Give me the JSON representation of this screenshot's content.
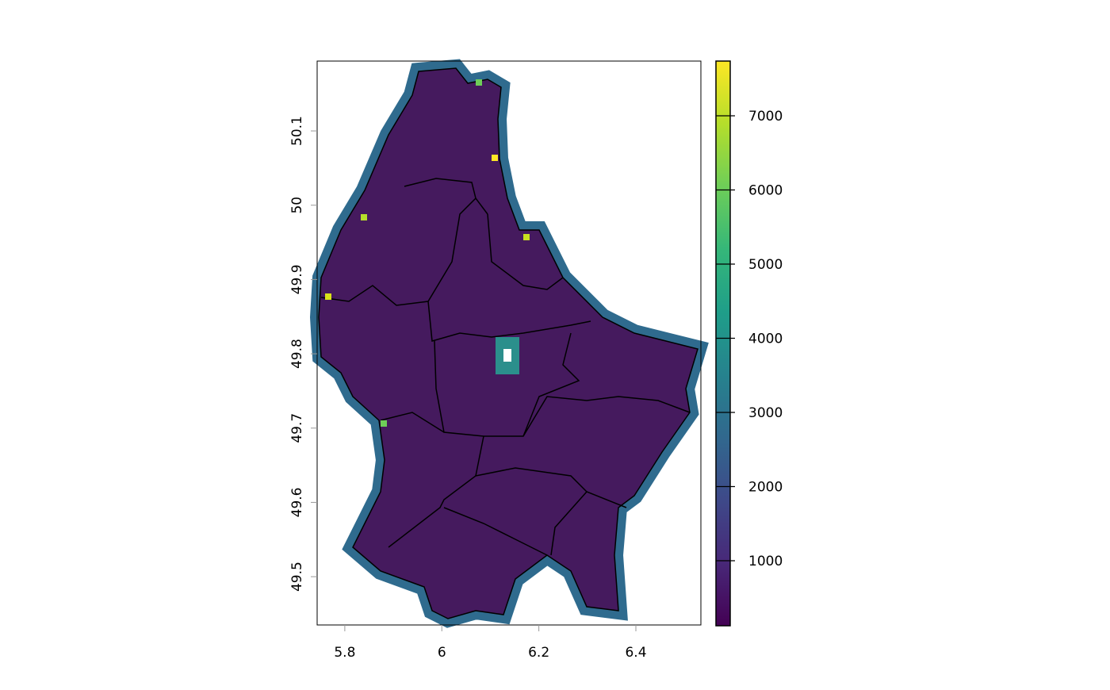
{
  "chart_data": {
    "type": "heatmap",
    "x_ticks": [
      "5.8",
      "6",
      "6.2",
      "6.4"
    ],
    "x_tick_values": [
      5.8,
      6.0,
      6.2,
      6.4
    ],
    "y_ticks": [
      "49.5",
      "49.6",
      "49.7",
      "49.8",
      "49.9",
      "50",
      "50.1"
    ],
    "y_tick_values": [
      49.5,
      49.6,
      49.7,
      49.8,
      49.9,
      50.0,
      50.1
    ],
    "xlim": [
      5.743,
      6.534
    ],
    "ylim": [
      49.435,
      50.194
    ],
    "legend": {
      "position": "right",
      "ticks": [
        "1000",
        "2000",
        "3000",
        "4000",
        "5000",
        "6000",
        "7000"
      ],
      "tick_values": [
        1000,
        2000,
        3000,
        4000,
        5000,
        6000,
        7000
      ],
      "range": [
        123,
        7738
      ],
      "colormap": "viridis",
      "colors": [
        "#440154",
        "#482878",
        "#3e4989",
        "#31688e",
        "#26828e",
        "#1f9e89",
        "#35b779",
        "#6ece58",
        "#b5de2b",
        "#fde725"
      ]
    },
    "interior_value_approx": 300,
    "border_value_range": [
      2000,
      7700
    ]
  }
}
